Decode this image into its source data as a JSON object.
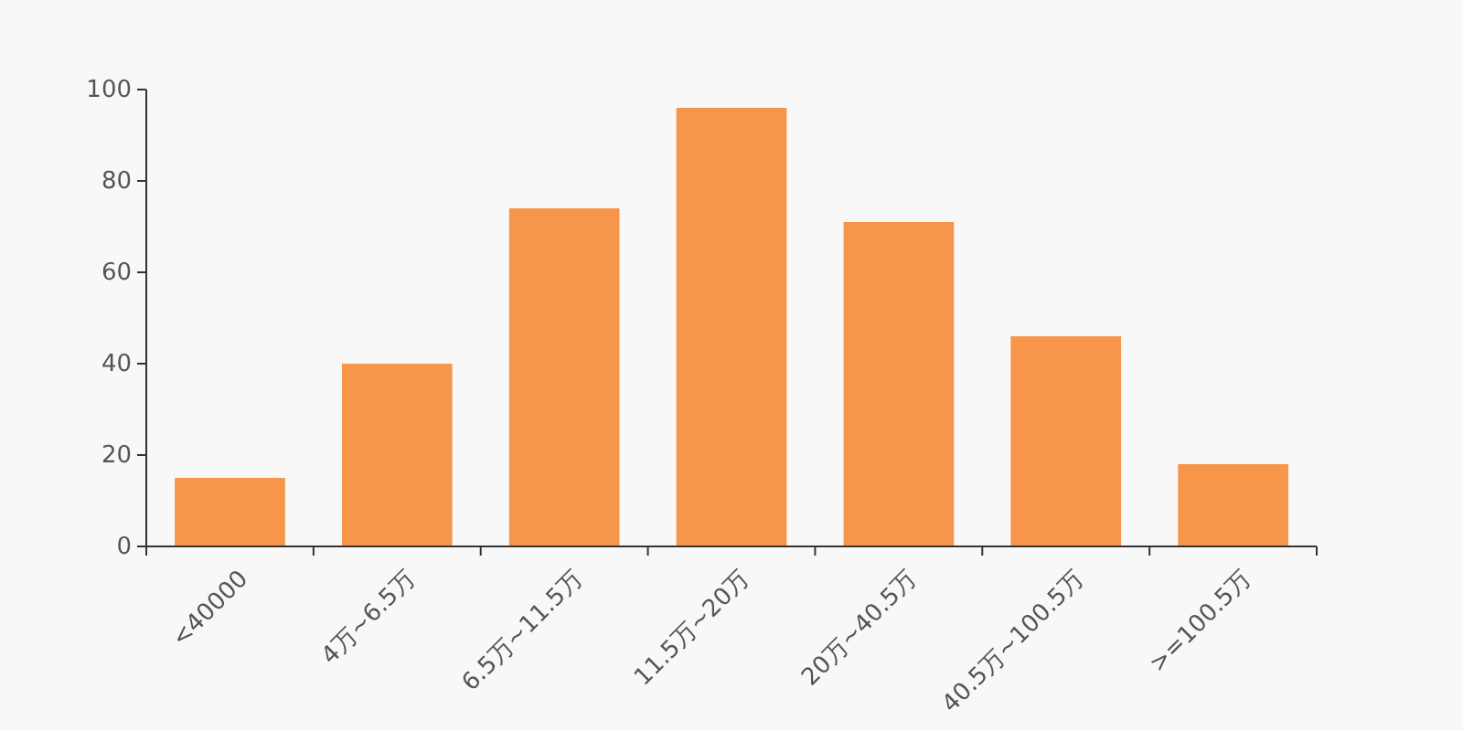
{
  "chart_data": {
    "type": "bar",
    "categories": [
      "<40000",
      "4万~6.5万",
      "6.5万~11.5万",
      "11.5万~20万",
      "20万~40.5万",
      "40.5万~100.5万",
      ">=100.5万"
    ],
    "values": [
      15,
      40,
      74,
      96,
      71,
      46,
      18
    ],
    "color": "#f7964a",
    "ylim": [
      0,
      100
    ],
    "yticks": [
      0,
      20,
      40,
      60,
      80,
      100
    ],
    "grid": false
  }
}
